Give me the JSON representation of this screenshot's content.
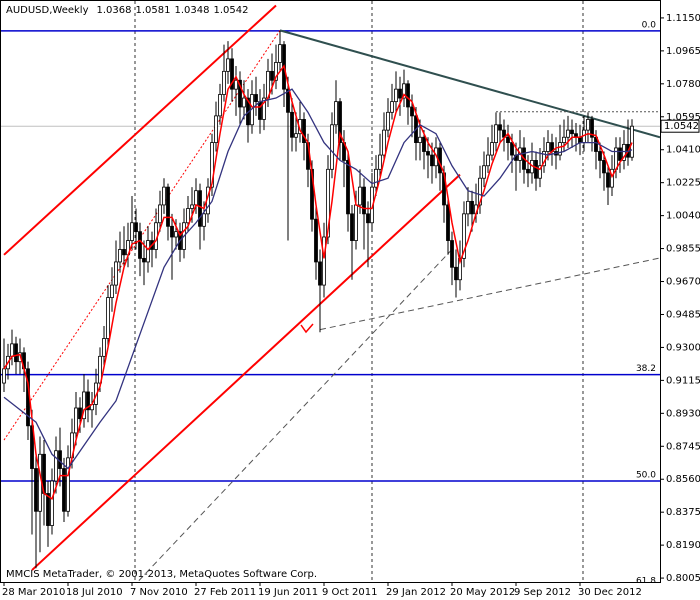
{
  "chart_data": {
    "type": "candlestick",
    "title": "AUDUSD,Weekly",
    "note": "MMCIS MetaTrader, © 2001-2013, MetaQuotes Software Corp.",
    "background": "#ffffff",
    "candle_color": "#000000",
    "up_fill": "#ffffff",
    "down_fill": "#000000",
    "price_line_color": "#c0c0c0",
    "categories": [
      "28 Mar 2010",
      null,
      null,
      null,
      null,
      null,
      null,
      null,
      null,
      null,
      null,
      null,
      null,
      null,
      null,
      null,
      "18 Jul 2010",
      null,
      null,
      null,
      null,
      null,
      null,
      null,
      null,
      null,
      null,
      null,
      null,
      null,
      null,
      null,
      "7 Nov 2010",
      null,
      null,
      null,
      null,
      null,
      null,
      null,
      null,
      null,
      null,
      null,
      null,
      null,
      null,
      null,
      "27 Feb 2011",
      null,
      null,
      null,
      null,
      null,
      null,
      null,
      null,
      null,
      null,
      null,
      null,
      null,
      null,
      null,
      "19 Jun 2011",
      null,
      null,
      null,
      null,
      null,
      null,
      null,
      null,
      null,
      null,
      null,
      null,
      null,
      null,
      null,
      "9 Oct 2011",
      null,
      null,
      null,
      null,
      null,
      null,
      null,
      null,
      null,
      null,
      null,
      null,
      null,
      null,
      null,
      "29 Jan 2012",
      null,
      null,
      null,
      null,
      null,
      null,
      null,
      null,
      null,
      null,
      null,
      null,
      null,
      null,
      null,
      "20 May 2012",
      null,
      null,
      null,
      null,
      null,
      null,
      null,
      null,
      null,
      null,
      null,
      null,
      null,
      null,
      null,
      "9 Sep 2012",
      null,
      null,
      null,
      null,
      null,
      null,
      null,
      null,
      null,
      null,
      null,
      null,
      null,
      null,
      null,
      "30 Dec 2012",
      null,
      null,
      null,
      null,
      null,
      null,
      null,
      null,
      null,
      null,
      null,
      null,
      null
    ],
    "open": [
      0.91,
      0.918,
      0.925,
      0.932,
      0.922,
      0.927,
      0.918,
      0.886,
      0.862,
      0.838,
      0.87,
      0.848,
      0.83,
      0.855,
      0.872,
      0.862,
      0.838,
      0.868,
      0.882,
      0.896,
      0.89,
      0.905,
      0.895,
      0.898,
      0.91,
      0.925,
      0.935,
      0.958,
      0.965,
      0.978,
      0.985,
      0.982,
      0.99,
      1.0,
      0.995,
      0.98,
      0.978,
      0.99,
      0.985,
      1.0,
      1.01,
      1.02,
      0.998,
      0.992,
      0.995,
      0.985,
      1.0,
      1.008,
      1.01,
      1.018,
      0.998,
      1.005,
      1.02,
      1.045,
      1.06,
      1.072,
      1.085,
      1.092,
      1.075,
      1.08,
      1.065,
      1.07,
      1.055,
      1.072,
      1.068,
      1.058,
      1.07,
      1.085,
      1.08,
      1.09,
      1.1,
      1.075,
      1.062,
      1.048,
      1.05,
      1.058,
      1.045,
      1.03,
      1.002,
      0.978,
      0.965,
      0.992,
      1.03,
      1.055,
      1.068,
      1.045,
      1.035,
      1.005,
      0.99,
      1.01,
      1.02,
      1.005,
      1.0,
      1.02,
      1.03,
      1.038,
      1.052,
      1.062,
      1.068,
      1.075,
      1.07,
      1.078,
      1.065,
      1.06,
      1.045,
      1.048,
      1.04,
      1.038,
      1.032,
      1.042,
      1.028,
      1.01,
      0.99,
      0.975,
      0.968,
      0.98,
      1.005,
      1.012,
      1.005,
      1.01,
      1.025,
      1.032,
      1.038,
      1.045,
      1.055,
      1.052,
      1.048,
      1.045,
      1.038,
      1.035,
      1.042,
      1.03,
      1.028,
      1.035,
      1.025,
      1.032,
      1.04,
      1.045,
      1.04,
      1.038,
      1.045,
      1.048,
      1.052,
      1.05,
      1.048,
      1.045,
      1.052,
      1.058,
      1.048,
      1.04,
      1.035,
      1.028,
      1.02,
      1.03,
      1.042,
      1.035,
      1.044,
      1.0368
    ],
    "high": [
      0.935,
      0.932,
      0.94,
      0.936,
      0.935,
      0.93,
      0.922,
      0.895,
      0.87,
      0.88,
      0.878,
      0.855,
      0.862,
      0.88,
      0.885,
      0.868,
      0.875,
      0.89,
      0.905,
      0.902,
      0.915,
      0.912,
      0.905,
      0.918,
      0.93,
      0.942,
      0.965,
      0.975,
      0.99,
      0.995,
      0.998,
      1.0,
      1.015,
      1.008,
      1.0,
      0.99,
      0.998,
      0.995,
      1.008,
      1.018,
      1.025,
      1.022,
      1.005,
      1.002,
      1.0,
      1.008,
      1.015,
      1.02,
      1.025,
      1.022,
      1.012,
      1.025,
      1.05,
      1.068,
      1.078,
      1.1,
      1.102,
      1.098,
      1.088,
      1.085,
      1.08,
      1.075,
      1.08,
      1.082,
      1.075,
      1.078,
      1.092,
      1.095,
      1.1,
      1.1077,
      1.102,
      1.082,
      1.07,
      1.062,
      1.068,
      1.062,
      1.05,
      1.035,
      1.01,
      0.985,
      1.0,
      1.038,
      1.062,
      1.08,
      1.07,
      1.052,
      1.04,
      1.01,
      1.018,
      1.03,
      1.025,
      1.012,
      1.028,
      1.038,
      1.05,
      1.062,
      1.07,
      1.078,
      1.085,
      1.082,
      1.086,
      1.08,
      1.072,
      1.065,
      1.058,
      1.052,
      1.048,
      1.045,
      1.048,
      1.045,
      1.032,
      1.015,
      0.995,
      0.985,
      0.99,
      1.012,
      1.02,
      1.018,
      1.022,
      1.032,
      1.04,
      1.048,
      1.055,
      1.062,
      1.062,
      1.058,
      1.055,
      1.05,
      1.045,
      1.052,
      1.048,
      1.038,
      1.045,
      1.04,
      1.042,
      1.048,
      1.052,
      1.05,
      1.048,
      1.055,
      1.058,
      1.06,
      1.058,
      1.056,
      1.055,
      1.06,
      1.062,
      1.06,
      1.052,
      1.045,
      1.04,
      1.032,
      1.038,
      1.048,
      1.048,
      1.052,
      1.058,
      1.0581
    ],
    "low": [
      0.905,
      0.912,
      0.92,
      0.915,
      0.915,
      0.905,
      0.878,
      0.825,
      0.806,
      0.815,
      0.83,
      0.818,
      0.825,
      0.848,
      0.852,
      0.832,
      0.835,
      0.862,
      0.875,
      0.882,
      0.885,
      0.888,
      0.885,
      0.892,
      0.905,
      0.92,
      0.93,
      0.95,
      0.96,
      0.972,
      0.975,
      0.975,
      0.985,
      0.985,
      0.97,
      0.965,
      0.972,
      0.975,
      0.98,
      0.995,
      1.005,
      0.99,
      0.968,
      0.985,
      0.978,
      0.98,
      0.995,
      1.0,
      1.005,
      0.985,
      0.99,
      1.0,
      1.015,
      1.04,
      1.055,
      1.068,
      1.078,
      1.068,
      1.06,
      1.055,
      1.058,
      1.045,
      1.05,
      1.06,
      1.05,
      1.052,
      1.065,
      1.072,
      1.075,
      1.085,
      1.065,
      0.99,
      1.04,
      1.04,
      1.045,
      1.035,
      1.02,
      0.995,
      0.968,
      0.9385,
      0.958,
      0.988,
      1.025,
      1.05,
      1.035,
      1.02,
      0.995,
      0.968,
      0.985,
      1.005,
      0.985,
      0.975,
      0.995,
      1.015,
      1.025,
      1.035,
      1.048,
      1.058,
      1.062,
      1.06,
      1.065,
      1.055,
      1.048,
      1.035,
      1.035,
      1.03,
      1.025,
      1.022,
      1.025,
      1.018,
      1.0,
      0.982,
      0.965,
      0.958,
      0.962,
      0.975,
      0.998,
      0.995,
      1.0,
      1.005,
      1.02,
      1.028,
      1.035,
      1.04,
      1.045,
      1.04,
      1.035,
      1.028,
      1.018,
      1.028,
      1.022,
      1.02,
      1.022,
      1.018,
      1.02,
      1.028,
      1.035,
      1.032,
      1.03,
      1.035,
      1.04,
      1.042,
      1.042,
      1.04,
      1.038,
      1.04,
      1.045,
      1.04,
      1.03,
      1.025,
      1.018,
      1.01,
      1.015,
      1.025,
      1.028,
      1.03,
      1.032,
      1.0348
    ],
    "close": [
      0.918,
      0.925,
      0.932,
      0.922,
      0.927,
      0.918,
      0.886,
      0.862,
      0.838,
      0.87,
      0.848,
      0.83,
      0.855,
      0.872,
      0.862,
      0.838,
      0.868,
      0.882,
      0.896,
      0.89,
      0.905,
      0.895,
      0.898,
      0.91,
      0.925,
      0.935,
      0.958,
      0.965,
      0.978,
      0.985,
      0.982,
      0.99,
      1.0,
      0.995,
      0.98,
      0.978,
      0.99,
      0.985,
      1.0,
      1.01,
      1.02,
      0.998,
      0.992,
      0.995,
      0.985,
      1.0,
      1.008,
      1.01,
      1.018,
      0.998,
      1.005,
      1.02,
      1.045,
      1.06,
      1.072,
      1.085,
      1.092,
      1.075,
      1.08,
      1.065,
      1.07,
      1.055,
      1.072,
      1.068,
      1.058,
      1.07,
      1.085,
      1.08,
      1.09,
      1.1,
      1.075,
      1.062,
      1.048,
      1.05,
      1.058,
      1.045,
      1.03,
      1.002,
      0.978,
      0.965,
      0.992,
      1.03,
      1.055,
      1.068,
      1.045,
      1.035,
      1.005,
      0.99,
      1.01,
      1.02,
      1.005,
      1.0,
      1.02,
      1.03,
      1.038,
      1.052,
      1.062,
      1.068,
      1.075,
      1.07,
      1.078,
      1.065,
      1.06,
      1.045,
      1.048,
      1.04,
      1.038,
      1.032,
      1.042,
      1.028,
      1.01,
      0.99,
      0.975,
      0.968,
      0.98,
      1.005,
      1.012,
      1.005,
      1.01,
      1.025,
      1.032,
      1.038,
      1.045,
      1.055,
      1.052,
      1.048,
      1.045,
      1.038,
      1.035,
      1.042,
      1.03,
      1.028,
      1.035,
      1.025,
      1.032,
      1.04,
      1.045,
      1.04,
      1.038,
      1.045,
      1.048,
      1.052,
      1.05,
      1.048,
      1.045,
      1.052,
      1.058,
      1.048,
      1.04,
      1.035,
      1.028,
      1.02,
      1.03,
      1.042,
      1.035,
      1.044,
      1.0368,
      1.0542
    ],
    "overlays": [
      {
        "color": "#ff0000",
        "width": 1.5,
        "x": [
          0,
          2,
          4,
          6,
          8,
          10,
          12,
          14,
          16,
          18,
          20,
          22,
          24,
          26,
          28,
          30,
          32,
          34,
          36,
          38,
          40,
          42,
          44,
          46,
          48,
          50,
          52,
          54,
          56,
          58,
          60,
          62,
          64,
          66,
          68,
          70,
          72,
          74,
          76,
          78,
          80,
          82,
          84,
          86,
          88,
          90,
          92,
          94,
          96,
          98,
          100,
          102,
          104,
          106,
          108,
          110,
          112,
          114,
          116,
          118,
          120,
          122,
          124,
          126,
          128,
          130,
          132,
          134,
          136,
          138,
          140,
          142,
          144,
          146,
          148,
          150,
          152,
          154,
          156,
          157
        ],
        "values": [
          0.918,
          0.925,
          0.926,
          0.91,
          0.87,
          0.848,
          0.845,
          0.858,
          0.858,
          0.878,
          0.895,
          0.898,
          0.908,
          0.93,
          0.955,
          0.975,
          0.988,
          0.99,
          0.985,
          0.99,
          1.003,
          1.003,
          0.993,
          0.998,
          1.01,
          1.008,
          1.022,
          1.05,
          1.075,
          1.082,
          1.072,
          1.065,
          1.065,
          1.07,
          1.082,
          1.088,
          1.068,
          1.052,
          1.045,
          1.01,
          0.98,
          1.012,
          1.05,
          1.04,
          1.01,
          1.008,
          1.008,
          1.025,
          1.045,
          1.062,
          1.072,
          1.068,
          1.055,
          1.045,
          1.038,
          1.028,
          1.0,
          0.978,
          0.99,
          1.005,
          1.018,
          1.033,
          1.045,
          1.05,
          1.042,
          1.036,
          1.032,
          1.03,
          1.038,
          1.042,
          1.043,
          1.048,
          1.048,
          1.05,
          1.049,
          1.038,
          1.026,
          1.034,
          1.04,
          1.045
        ]
      },
      {
        "color": "#33337f",
        "width": 1.3,
        "x": [
          0,
          4,
          8,
          12,
          16,
          20,
          24,
          28,
          32,
          36,
          40,
          44,
          48,
          52,
          56,
          60,
          64,
          68,
          72,
          76,
          80,
          84,
          88,
          92,
          96,
          100,
          104,
          108,
          112,
          116,
          120,
          124,
          128,
          132,
          136,
          140,
          144,
          148,
          152,
          156,
          157
        ],
        "values": [
          0.902,
          0.895,
          0.888,
          0.87,
          0.862,
          0.875,
          0.888,
          0.9,
          0.925,
          0.95,
          0.975,
          0.99,
          1.0,
          1.012,
          1.04,
          1.06,
          1.068,
          1.07,
          1.075,
          1.062,
          1.045,
          1.035,
          1.03,
          1.022,
          1.025,
          1.045,
          1.055,
          1.05,
          1.032,
          1.018,
          1.015,
          1.025,
          1.038,
          1.04,
          1.038,
          1.04,
          1.045,
          1.045,
          1.04,
          1.04,
          1.041
        ]
      }
    ],
    "trendlines": [
      {
        "color": "#ff0000",
        "style": "solid",
        "width": 2,
        "x": [
          0,
          68
        ],
        "values": [
          0.982,
          1.122
        ]
      },
      {
        "color": "#ff0000",
        "style": "solid",
        "width": 2,
        "x": [
          7,
          114
        ],
        "values": [
          0.805,
          1.027
        ]
      },
      {
        "color": "#ff0000",
        "style": "dotted",
        "width": 1,
        "x": [
          0,
          69
        ],
        "values": [
          0.878,
          1.108
        ]
      },
      {
        "color": "#555555",
        "style": "dashed",
        "width": 1,
        "x": [
          32,
          112
        ],
        "values": [
          0.795,
          0.985
        ]
      },
      {
        "color": "#2f4f4f",
        "style": "solid",
        "width": 2,
        "x": [
          69,
          164
        ],
        "values": [
          1.108,
          1.048
        ]
      },
      {
        "color": "#555555",
        "style": "dashed",
        "width": 1,
        "x": [
          79,
          172
        ],
        "values": [
          0.94,
          0.984
        ]
      },
      {
        "color": "#555555",
        "style": "solid",
        "width": 1,
        "x": [
          79,
          79
        ],
        "values": [
          0.94,
          0.948
        ]
      },
      {
        "color": "#555555",
        "style": "dotted",
        "width": 1,
        "x": [
          123,
          164
        ],
        "values": [
          1.0623,
          1.0623
        ]
      }
    ],
    "levels": [
      {
        "label": "0.0",
        "value": 1.1077,
        "color": "#0000cd"
      },
      {
        "label": "38.2",
        "value": 0.9147,
        "color": "#0000cd"
      },
      {
        "label": "50.0",
        "value": 0.855,
        "color": "#0000cd"
      },
      {
        "label": "61.8",
        "value": 0.7956,
        "color": "#0000cd"
      }
    ],
    "ylim": [
      0.7983,
      1.1245
    ],
    "yticks": [
      {
        "value": 1.115,
        "label": "1.1150"
      },
      1.0965,
      {
        "value": 1.078,
        "label": "1.0780"
      },
      1.0595,
      {
        "value": 1.041,
        "label": "1.0410"
      },
      1.0225,
      {
        "value": 1.004,
        "label": "1.0040"
      },
      0.9855,
      {
        "value": 0.967,
        "label": "0.9670"
      },
      0.9485,
      {
        "value": 0.93,
        "label": "0.9300"
      },
      0.9115,
      {
        "value": 0.893,
        "label": "0.8930"
      },
      0.8745,
      {
        "value": 0.856,
        "label": "0.8560"
      },
      0.8375,
      {
        "value": 0.819,
        "label": "0.8190"
      },
      0.8005
    ]
  }
}
